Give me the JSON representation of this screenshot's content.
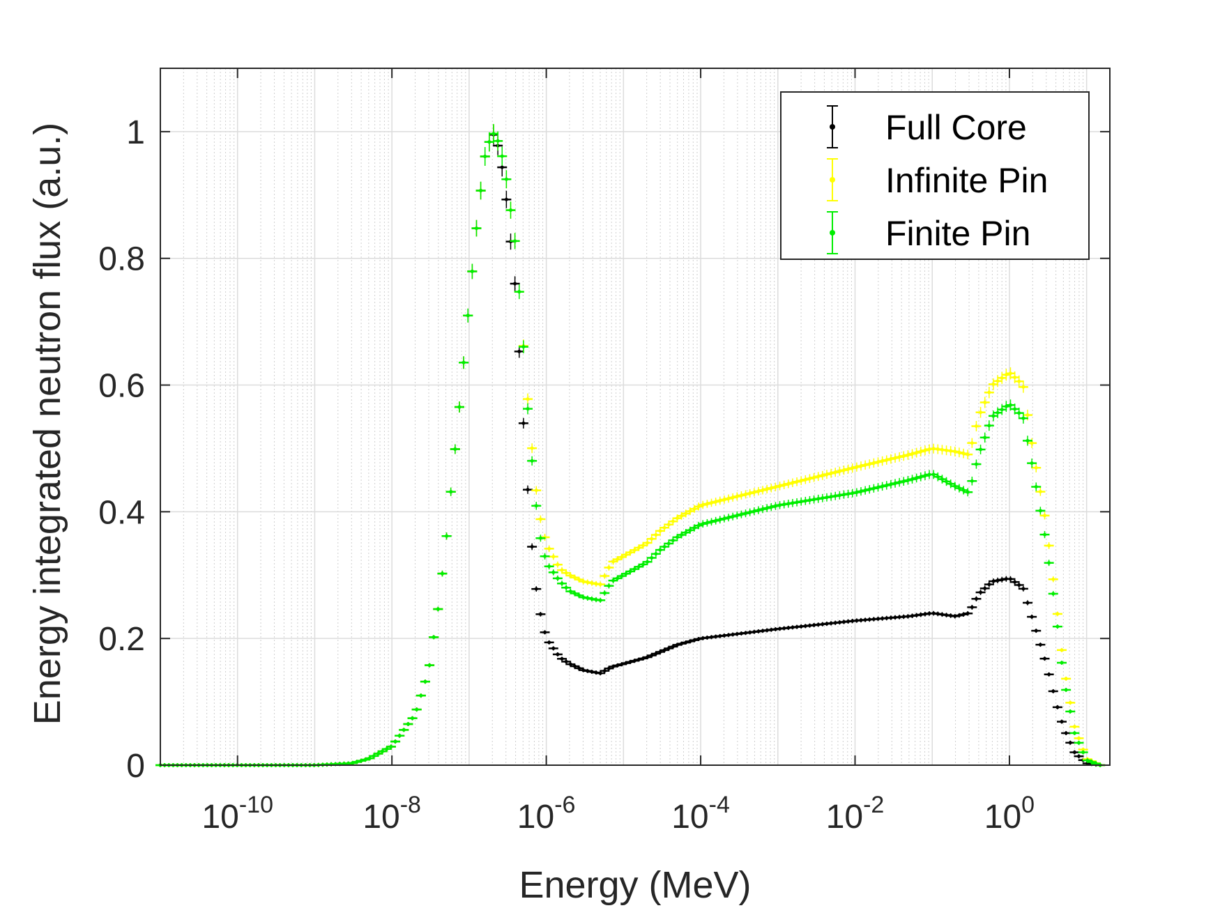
{
  "chart_data": {
    "type": "scatter",
    "title": "",
    "xlabel": "Energy (MeV)",
    "ylabel": "Energy integrated neutron flux (a.u.)",
    "xscale": "log",
    "xlim": [
      1e-11,
      20
    ],
    "ylim": [
      0,
      1.1
    ],
    "grid": true,
    "legend_position": "top-right",
    "x_ticks": [
      {
        "base": "10",
        "exp": "-10"
      },
      {
        "base": "10",
        "exp": "-8"
      },
      {
        "base": "10",
        "exp": "-6"
      },
      {
        "base": "10",
        "exp": "-4"
      },
      {
        "base": "10",
        "exp": "-2"
      },
      {
        "base": "10",
        "exp": "0"
      }
    ],
    "y_ticks": [
      "0",
      "0.2",
      "0.4",
      "0.6",
      "0.8",
      "1"
    ],
    "series": [
      {
        "name": "Full Core",
        "color": "#000000",
        "points": [
          [
            1e-11,
            0
          ],
          [
            1e-09,
            0
          ],
          [
            3e-09,
            0.003
          ],
          [
            5e-09,
            0.01
          ],
          [
            1e-08,
            0.03
          ],
          [
            2e-08,
            0.08
          ],
          [
            3e-08,
            0.15
          ],
          [
            4e-08,
            0.25
          ],
          [
            5e-08,
            0.35
          ],
          [
            6e-08,
            0.45
          ],
          [
            8e-08,
            0.6
          ],
          [
            1e-07,
            0.73
          ],
          [
            1.3e-07,
            0.87
          ],
          [
            1.6e-07,
            0.96
          ],
          [
            2e-07,
            1.0
          ],
          [
            2.5e-07,
            0.97
          ],
          [
            3e-07,
            0.9
          ],
          [
            4e-07,
            0.75
          ],
          [
            5e-07,
            0.55
          ],
          [
            6e-07,
            0.4
          ],
          [
            7e-07,
            0.3
          ],
          [
            8e-07,
            0.25
          ],
          [
            1e-06,
            0.2
          ],
          [
            1.5e-06,
            0.17
          ],
          [
            2e-06,
            0.16
          ],
          [
            3e-06,
            0.15
          ],
          [
            5e-06,
            0.145
          ],
          [
            7e-06,
            0.155
          ],
          [
            1e-05,
            0.16
          ],
          [
            2e-05,
            0.17
          ],
          [
            5e-05,
            0.19
          ],
          [
            0.0001,
            0.2
          ],
          [
            0.001,
            0.215
          ],
          [
            0.01,
            0.228
          ],
          [
            0.05,
            0.235
          ],
          [
            0.1,
            0.24
          ],
          [
            0.2,
            0.235
          ],
          [
            0.3,
            0.24
          ],
          [
            0.4,
            0.27
          ],
          [
            0.6,
            0.29
          ],
          [
            1.0,
            0.295
          ],
          [
            1.5,
            0.28
          ],
          [
            2,
            0.23
          ],
          [
            3,
            0.16
          ],
          [
            4,
            0.1
          ],
          [
            5,
            0.06
          ],
          [
            7,
            0.02
          ],
          [
            10,
            0.003
          ],
          [
            15,
            0
          ]
        ]
      },
      {
        "name": "Infinite Pin",
        "color": "#ffff00",
        "points": [
          [
            1e-11,
            0
          ],
          [
            1e-09,
            0
          ],
          [
            3e-09,
            0.003
          ],
          [
            5e-09,
            0.01
          ],
          [
            1e-08,
            0.03
          ],
          [
            2e-08,
            0.08
          ],
          [
            3e-08,
            0.15
          ],
          [
            4e-08,
            0.25
          ],
          [
            5e-08,
            0.35
          ],
          [
            6e-08,
            0.45
          ],
          [
            8e-08,
            0.6
          ],
          [
            1e-07,
            0.73
          ],
          [
            1.3e-07,
            0.87
          ],
          [
            1.6e-07,
            0.96
          ],
          [
            2e-07,
            1.0
          ],
          [
            2.5e-07,
            0.98
          ],
          [
            3e-07,
            0.93
          ],
          [
            4e-07,
            0.82
          ],
          [
            5e-07,
            0.67
          ],
          [
            6e-07,
            0.55
          ],
          [
            7e-07,
            0.46
          ],
          [
            8e-07,
            0.4
          ],
          [
            1e-06,
            0.35
          ],
          [
            1.5e-06,
            0.31
          ],
          [
            2e-06,
            0.3
          ],
          [
            3e-06,
            0.29
          ],
          [
            5e-06,
            0.285
          ],
          [
            7e-06,
            0.32
          ],
          [
            1e-05,
            0.33
          ],
          [
            2e-05,
            0.35
          ],
          [
            3e-05,
            0.37
          ],
          [
            5e-05,
            0.39
          ],
          [
            0.0001,
            0.41
          ],
          [
            0.001,
            0.44
          ],
          [
            0.01,
            0.47
          ],
          [
            0.05,
            0.49
          ],
          [
            0.1,
            0.5
          ],
          [
            0.2,
            0.495
          ],
          [
            0.3,
            0.49
          ],
          [
            0.4,
            0.55
          ],
          [
            0.6,
            0.6
          ],
          [
            1.0,
            0.62
          ],
          [
            1.5,
            0.6
          ],
          [
            2,
            0.5
          ],
          [
            3,
            0.38
          ],
          [
            4,
            0.26
          ],
          [
            5,
            0.16
          ],
          [
            7,
            0.06
          ],
          [
            10,
            0.01
          ],
          [
            15,
            0
          ]
        ]
      },
      {
        "name": "Finite Pin",
        "color": "#00ee00",
        "points": [
          [
            1e-11,
            0
          ],
          [
            1e-09,
            0
          ],
          [
            3e-09,
            0.003
          ],
          [
            5e-09,
            0.01
          ],
          [
            1e-08,
            0.03
          ],
          [
            2e-08,
            0.08
          ],
          [
            3e-08,
            0.15
          ],
          [
            4e-08,
            0.25
          ],
          [
            5e-08,
            0.35
          ],
          [
            6e-08,
            0.45
          ],
          [
            8e-08,
            0.6
          ],
          [
            1e-07,
            0.73
          ],
          [
            1.3e-07,
            0.87
          ],
          [
            1.6e-07,
            0.96
          ],
          [
            2e-07,
            1.0
          ],
          [
            2.5e-07,
            0.98
          ],
          [
            3e-07,
            0.93
          ],
          [
            4e-07,
            0.82
          ],
          [
            5e-07,
            0.67
          ],
          [
            6e-07,
            0.53
          ],
          [
            7e-07,
            0.44
          ],
          [
            8e-07,
            0.37
          ],
          [
            1e-06,
            0.32
          ],
          [
            1.5e-06,
            0.29
          ],
          [
            2e-06,
            0.275
          ],
          [
            3e-06,
            0.265
          ],
          [
            5e-06,
            0.26
          ],
          [
            7e-06,
            0.29
          ],
          [
            1e-05,
            0.3
          ],
          [
            2e-05,
            0.32
          ],
          [
            3e-05,
            0.34
          ],
          [
            5e-05,
            0.36
          ],
          [
            0.0001,
            0.38
          ],
          [
            0.001,
            0.41
          ],
          [
            0.01,
            0.43
          ],
          [
            0.05,
            0.45
          ],
          [
            0.1,
            0.46
          ],
          [
            0.2,
            0.44
          ],
          [
            0.3,
            0.43
          ],
          [
            0.4,
            0.49
          ],
          [
            0.6,
            0.55
          ],
          [
            1.0,
            0.57
          ],
          [
            1.5,
            0.55
          ],
          [
            2,
            0.47
          ],
          [
            3,
            0.35
          ],
          [
            4,
            0.24
          ],
          [
            5,
            0.14
          ],
          [
            7,
            0.05
          ],
          [
            10,
            0.008
          ],
          [
            15,
            0
          ]
        ]
      }
    ]
  }
}
